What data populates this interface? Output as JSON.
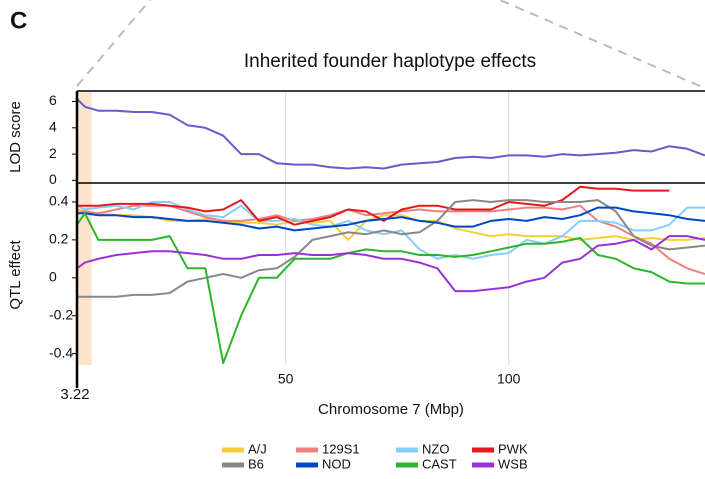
{
  "panel_label": "C",
  "chart_data": [
    {
      "type": "line",
      "title": "Inherited founder haplotype effects",
      "y_label": "LOD score",
      "x": [
        3.22,
        5,
        8,
        12,
        16,
        20,
        24,
        28,
        32,
        36,
        40,
        44,
        48,
        52,
        56,
        60,
        64,
        68,
        72,
        76,
        80,
        84,
        88,
        92,
        96,
        100,
        104,
        108,
        112,
        116,
        120,
        124,
        128,
        132,
        136,
        140,
        144
      ],
      "series": [
        {
          "color": "#6a5acd",
          "values": [
            6.2,
            5.6,
            5.3,
            5.3,
            5.2,
            5.2,
            5.0,
            4.2,
            4.0,
            3.4,
            2.0,
            2.0,
            1.3,
            1.2,
            1.2,
            1.0,
            0.9,
            1.0,
            0.9,
            1.2,
            1.3,
            1.4,
            1.7,
            1.8,
            1.7,
            1.9,
            1.9,
            1.8,
            2.0,
            1.9,
            2.0,
            2.1,
            2.3,
            2.2,
            2.6,
            2.4,
            1.9
          ]
        }
      ],
      "xlim": [
        3.22,
        144
      ],
      "ylim": [
        -0.2,
        6.8
      ],
      "yticks": [
        0,
        2,
        4,
        6
      ],
      "grid": true
    },
    {
      "type": "line",
      "y_label": "QTL effect",
      "x_label": "Chromosome 7 (Mbp)",
      "x": [
        3.22,
        5,
        8,
        12,
        16,
        20,
        24,
        28,
        32,
        36,
        40,
        44,
        48,
        52,
        56,
        60,
        64,
        68,
        72,
        76,
        80,
        84,
        88,
        92,
        96,
        100,
        104,
        108,
        112,
        116,
        120,
        124,
        128,
        132,
        136,
        140,
        144
      ],
      "series": [
        {
          "name": "A/J",
          "color": "#f5cf3a",
          "values": [
            0.36,
            0.35,
            0.34,
            0.33,
            0.33,
            0.32,
            0.3,
            0.3,
            0.31,
            0.3,
            0.29,
            0.29,
            0.28,
            0.3,
            0.29,
            0.3,
            0.2,
            0.3,
            0.33,
            0.33,
            0.3,
            0.3,
            0.26,
            0.24,
            0.22,
            0.23,
            0.22,
            0.22,
            0.22,
            0.2,
            0.21,
            0.22,
            0.2,
            0.21,
            0.2,
            0.2,
            0.21
          ]
        },
        {
          "name": "129S1",
          "color": "#f08080",
          "values": [
            0.34,
            0.35,
            0.34,
            0.36,
            0.38,
            0.38,
            0.38,
            0.35,
            0.32,
            0.3,
            0.3,
            0.31,
            0.33,
            0.3,
            0.31,
            0.33,
            0.36,
            0.33,
            0.34,
            0.35,
            0.36,
            0.35,
            0.35,
            0.35,
            0.35,
            0.36,
            0.37,
            0.37,
            0.36,
            0.38,
            0.3,
            0.27,
            0.22,
            0.18,
            0.1,
            0.05,
            0.02
          ]
        },
        {
          "name": "NZO",
          "color": "#87cefa",
          "values": [
            0.38,
            0.36,
            0.37,
            0.38,
            0.36,
            0.4,
            0.4,
            0.36,
            0.33,
            0.32,
            0.38,
            0.3,
            0.3,
            0.31,
            0.28,
            0.27,
            0.3,
            0.25,
            0.23,
            0.25,
            0.15,
            0.1,
            0.12,
            0.1,
            0.12,
            0.13,
            0.2,
            0.18,
            0.22,
            0.3,
            0.3,
            0.29,
            0.25,
            0.25,
            0.28,
            0.37,
            0.37
          ]
        },
        {
          "name": "PWK",
          "color": "#e31a1c",
          "values": [
            0.38,
            0.38,
            0.38,
            0.39,
            0.39,
            0.39,
            0.38,
            0.37,
            0.35,
            0.36,
            0.41,
            0.3,
            0.32,
            0.28,
            0.3,
            0.32,
            0.36,
            0.35,
            0.3,
            0.36,
            0.38,
            0.38,
            0.36,
            0.36,
            0.36,
            0.4,
            0.39,
            0.38,
            0.41,
            0.48,
            0.47,
            0.47,
            0.46,
            0.46,
            0.46,
            null,
            null
          ]
        },
        {
          "name": "B6",
          "color": "#888888",
          "values": [
            -0.1,
            -0.1,
            -0.1,
            -0.1,
            -0.09,
            -0.09,
            -0.08,
            -0.02,
            0.0,
            0.02,
            0.0,
            0.04,
            0.05,
            0.11,
            0.2,
            0.22,
            0.24,
            0.23,
            0.25,
            0.23,
            0.24,
            0.3,
            0.4,
            0.41,
            0.4,
            0.41,
            0.41,
            0.4,
            0.4,
            0.4,
            0.41,
            0.35,
            0.22,
            0.17,
            0.15,
            0.16,
            0.17
          ]
        },
        {
          "name": "NOD",
          "color": "#0047c8",
          "values": [
            0.34,
            0.34,
            0.33,
            0.33,
            0.32,
            0.32,
            0.31,
            0.3,
            0.3,
            0.29,
            0.28,
            0.26,
            0.27,
            0.25,
            0.26,
            0.27,
            0.28,
            0.3,
            0.31,
            0.32,
            0.3,
            0.29,
            0.27,
            0.27,
            0.3,
            0.31,
            0.3,
            0.32,
            0.31,
            0.33,
            0.37,
            0.37,
            0.35,
            0.34,
            0.33,
            0.31,
            0.3
          ]
        },
        {
          "name": "CAST",
          "color": "#2cb52c",
          "values": [
            0.28,
            0.34,
            0.2,
            0.2,
            0.2,
            0.2,
            0.22,
            0.05,
            0.05,
            -0.45,
            -0.2,
            0.0,
            0.0,
            0.1,
            0.1,
            0.1,
            0.13,
            0.15,
            0.14,
            0.14,
            0.12,
            0.12,
            0.11,
            0.12,
            0.14,
            0.16,
            0.18,
            0.18,
            0.19,
            0.21,
            0.12,
            0.1,
            0.05,
            0.03,
            -0.02,
            -0.03,
            -0.03
          ]
        },
        {
          "name": "WSB",
          "color": "#9b30d9",
          "values": [
            0.05,
            0.08,
            0.1,
            0.12,
            0.13,
            0.14,
            0.14,
            0.13,
            0.12,
            0.1,
            0.1,
            0.12,
            0.12,
            0.13,
            0.12,
            0.12,
            0.13,
            0.12,
            0.1,
            0.1,
            0.08,
            0.05,
            -0.07,
            -0.07,
            -0.06,
            -0.05,
            -0.02,
            0.0,
            0.08,
            0.1,
            0.17,
            0.18,
            0.2,
            0.15,
            0.22,
            0.22,
            0.2
          ]
        }
      ],
      "xlim": [
        3.22,
        144
      ],
      "ylim": [
        -0.46,
        0.5
      ],
      "xticks": [
        50,
        100
      ],
      "yticks": [
        -0.4,
        -0.2,
        0,
        0.2,
        0.4
      ],
      "grid": true,
      "marker_x": 3.22,
      "shaded_x": [
        3.5,
        6.5
      ],
      "legend": "bottom"
    }
  ]
}
